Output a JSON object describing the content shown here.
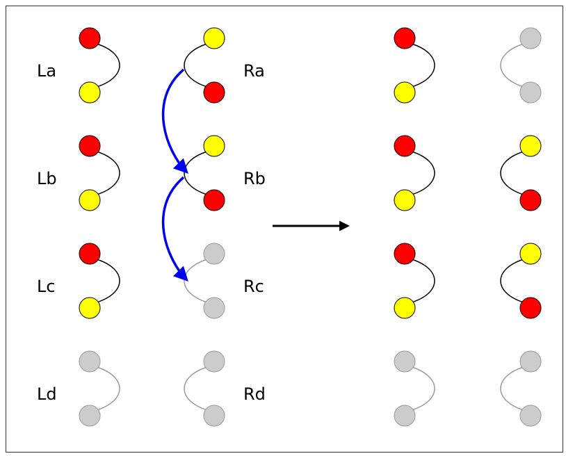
{
  "labels": {
    "La": "La",
    "Lb": "Lb",
    "Lc": "Lc",
    "Ld": "Ld",
    "Ra": "Ra",
    "Rb": "Rb",
    "Rc": "Rc",
    "Rd": "Rd"
  },
  "colors": {
    "red": "#ff0000",
    "yellow": "#ffff00",
    "gray": "#cccccc",
    "gray_stroke": "#999999",
    "blue": "#0000ee",
    "black": "#000000"
  },
  "before": {
    "left_units": [
      {
        "id": "La",
        "top": "red",
        "bottom": "yellow"
      },
      {
        "id": "Lb",
        "top": "red",
        "bottom": "yellow"
      },
      {
        "id": "Lc",
        "top": "red",
        "bottom": "yellow"
      },
      {
        "id": "Ld",
        "top": "gray",
        "bottom": "gray"
      }
    ],
    "right_units": [
      {
        "id": "Ra",
        "top": "yellow",
        "bottom": "red"
      },
      {
        "id": "Rb",
        "top": "yellow",
        "bottom": "red"
      },
      {
        "id": "Rc",
        "top": "gray",
        "bottom": "gray"
      },
      {
        "id": "Rd",
        "top": "gray",
        "bottom": "gray"
      }
    ],
    "moves": [
      {
        "from": "Ra",
        "to": "Rb"
      },
      {
        "from": "Rb",
        "to": "Rc"
      }
    ]
  },
  "after": {
    "left_units": [
      {
        "top": "red",
        "bottom": "yellow"
      },
      {
        "top": "red",
        "bottom": "yellow"
      },
      {
        "top": "red",
        "bottom": "yellow"
      },
      {
        "top": "gray",
        "bottom": "gray"
      }
    ],
    "right_units": [
      {
        "top": "gray",
        "bottom": "gray"
      },
      {
        "top": "yellow",
        "bottom": "red"
      },
      {
        "top": "yellow",
        "bottom": "red"
      },
      {
        "top": "gray",
        "bottom": "gray"
      }
    ]
  }
}
